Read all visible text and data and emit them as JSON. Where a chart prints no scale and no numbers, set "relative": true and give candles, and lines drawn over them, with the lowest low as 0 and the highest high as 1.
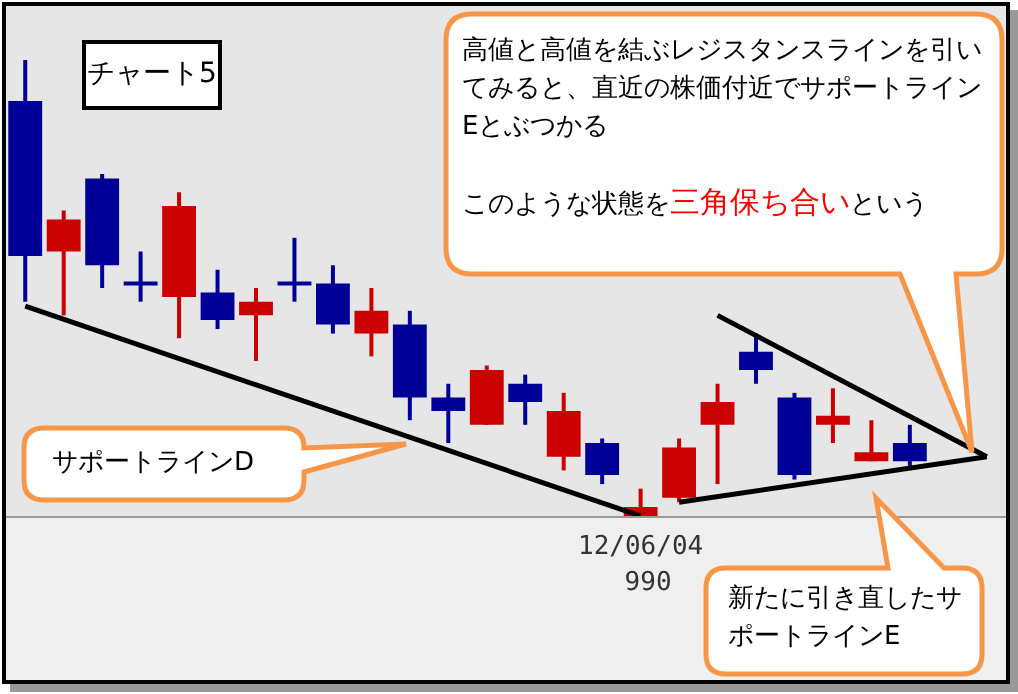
{
  "chart_data": {
    "type": "candlestick",
    "relative": true,
    "title": "チャート5",
    "categories": [
      null,
      null,
      null,
      null,
      null,
      null,
      null,
      null,
      null,
      null,
      null,
      null,
      null,
      null,
      null,
      null,
      "12/06/04",
      null,
      null,
      null,
      null,
      null,
      null,
      null,
      null,
      null
    ],
    "ohlc": [
      [
        0.91,
        1.0,
        0.47,
        0.57
      ],
      [
        0.58,
        0.67,
        0.44,
        0.65
      ],
      [
        0.74,
        0.75,
        0.5,
        0.55
      ],
      [
        0.51,
        0.58,
        0.47,
        0.51
      ],
      [
        0.48,
        0.71,
        0.39,
        0.68
      ],
      [
        0.49,
        0.54,
        0.41,
        0.43
      ],
      [
        0.44,
        0.5,
        0.34,
        0.47
      ],
      [
        0.51,
        0.61,
        0.47,
        0.51
      ],
      [
        0.51,
        0.55,
        0.4,
        0.42
      ],
      [
        0.4,
        0.5,
        0.35,
        0.45
      ],
      [
        0.42,
        0.45,
        0.21,
        0.26
      ],
      [
        0.26,
        0.29,
        0.16,
        0.23
      ],
      [
        0.2,
        0.33,
        0.2,
        0.32
      ],
      [
        0.29,
        0.31,
        0.2,
        0.25
      ],
      [
        0.13,
        0.27,
        0.1,
        0.23
      ],
      [
        0.16,
        0.17,
        0.07,
        0.09
      ],
      [
        0.0,
        0.06,
        0.0,
        0.02
      ],
      [
        0.04,
        0.17,
        0.03,
        0.15
      ],
      [
        0.2,
        0.29,
        0.07,
        0.25
      ],
      [
        0.36,
        0.4,
        0.29,
        0.32
      ],
      [
        0.26,
        0.27,
        0.08,
        0.09
      ],
      [
        0.2,
        0.28,
        0.16,
        0.22
      ],
      [
        0.12,
        0.21,
        0.12,
        0.14
      ],
      [
        0.16,
        0.2,
        0.11,
        0.12
      ],
      null,
      null
    ],
    "colors": [
      "#000099",
      "#cc0000",
      "#000099",
      "#000099",
      "#cc0000",
      "#000099",
      "#cc0000",
      "#000099",
      "#000099",
      "#cc0000",
      "#000099",
      "#000099",
      "#cc0000",
      "#000099",
      "#cc0000",
      "#000099",
      "#cc0000",
      "#cc0000",
      "#cc0000",
      "#000099",
      "#000099",
      "#cc0000",
      "#cc0000",
      "#000099",
      null,
      null
    ],
    "series": [
      {
        "type": "line",
        "color": "#000000",
        "values": [
          0.46,
          null,
          null,
          null,
          null,
          null,
          null,
          null,
          null,
          null,
          null,
          null,
          null,
          null,
          null,
          null,
          0.0,
          null,
          null,
          null,
          null,
          null,
          null,
          null,
          null,
          null
        ]
      },
      {
        "type": "line",
        "color": "#000000",
        "values": [
          null,
          null,
          null,
          null,
          null,
          null,
          null,
          null,
          null,
          null,
          null,
          null,
          null,
          null,
          null,
          null,
          null,
          null,
          0.44,
          null,
          null,
          null,
          null,
          null,
          null,
          0.13
        ]
      },
      {
        "type": "line",
        "color": "#000000",
        "values": [
          null,
          null,
          null,
          null,
          null,
          null,
          null,
          null,
          null,
          null,
          null,
          null,
          null,
          null,
          null,
          null,
          null,
          0.03,
          null,
          null,
          null,
          null,
          null,
          null,
          null,
          0.13
        ]
      }
    ],
    "marker": "none",
    "annotations": [
      "高値と高値を結ぶレジスタンスラインを引いてみると、直近の株価付近でサポートラインEとぶつかる",
      "このような状態を",
      "三角保ち合い",
      "という",
      "サポートラインD",
      "新たに引き直したサポートラインE",
      {
        "text": "990",
        "x": "12/06/04",
        "y": 0
      }
    ]
  }
}
